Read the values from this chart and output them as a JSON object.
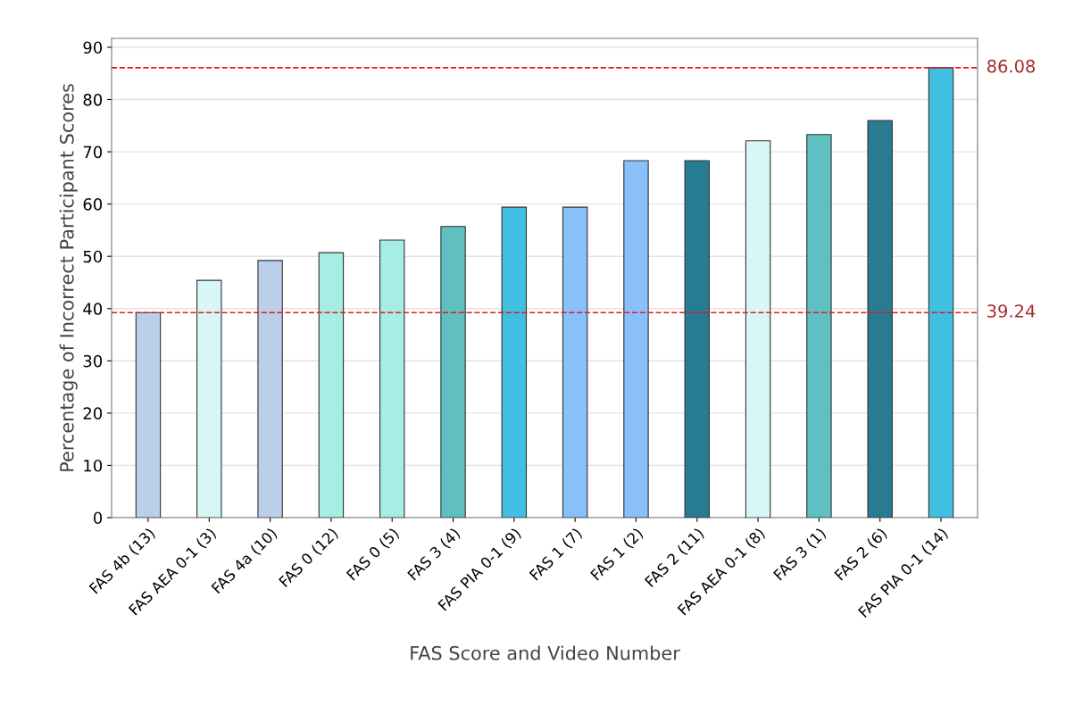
{
  "chart_data": {
    "type": "bar",
    "xlabel": "FAS Score and Video Number",
    "ylabel": "Percentage of Incorrect Participant Scores",
    "categories": [
      "FAS 4b (13)",
      "FAS AEA 0-1 (3)",
      "FAS 4a (10)",
      "FAS 0 (12)",
      "FAS 0 (5)",
      "FAS 3 (4)",
      "FAS PIA 0-1 (9)",
      "FAS 1 (7)",
      "FAS 1 (2)",
      "FAS 2 (11)",
      "FAS AEA 0-1 (8)",
      "FAS 3 (1)",
      "FAS 2 (6)",
      "FAS PIA 0-1 (14)"
    ],
    "values": [
      39.24,
      45.4,
      49.2,
      50.7,
      53.1,
      55.7,
      59.4,
      59.4,
      68.3,
      68.3,
      72.1,
      73.3,
      76.0,
      86.08
    ],
    "colors": [
      "#bccfea",
      "#d9f6f6",
      "#bccfea",
      "#a6ede3",
      "#a6ede3",
      "#60bfc1",
      "#40bfe0",
      "#88c0fa",
      "#88c0fa",
      "#277b92",
      "#d9f6f6",
      "#60bfc1",
      "#277b92",
      "#40bfe0"
    ],
    "ylim": [
      0,
      91.7
    ],
    "yticks": [
      0,
      10,
      20,
      30,
      40,
      50,
      60,
      70,
      80,
      90
    ],
    "grid": "y",
    "ref_lines": [
      {
        "axis": "y",
        "value": 86.08,
        "label": "86.08",
        "color": "#e31a1c",
        "line_style": "dashed"
      },
      {
        "axis": "y",
        "value": 39.24,
        "label": "39.24",
        "color": "#e31a1c",
        "line_style": "dashed"
      }
    ]
  }
}
